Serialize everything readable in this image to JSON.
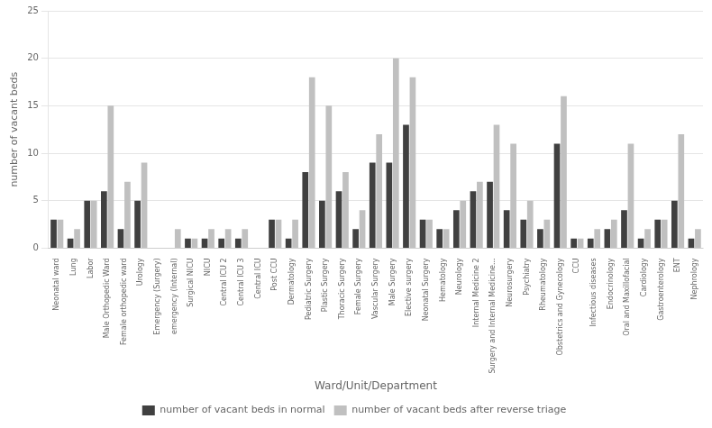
{
  "chart_data": {
    "type": "bar",
    "categories": [
      "Neonatal ward",
      "Lung",
      "Labor",
      "Male Orthopedic Ward",
      "Female orthopedic ward",
      "Urology",
      "Emergency (Surgery)",
      "emergency (Internal)",
      "Surgical NICU",
      "NICU",
      "Central ICU 2",
      "Central ICU 3",
      "Central ICU",
      "Post CCU",
      "Dermatology",
      "Pediatric Surgery",
      "Plastic Surgery",
      "Thoracic Surgery",
      "Female Surgery",
      "Vascular Surgery",
      "Male Surgery",
      "Elective surgery",
      "Neonatal Surgery",
      "Hematology",
      "Neurology",
      "Internal Medicine 2",
      "Surgery and Internal Medicine...",
      "Neurosurgery",
      "Psychiatry",
      "Rheumatology",
      "Obstetrics and Gynecology",
      "CCU",
      "Infectious diseases",
      "Endocrinology",
      "Oral and Maxillofacial",
      "Cardiology",
      "Gastroenterology",
      "ENT",
      "Nephrology"
    ],
    "series": [
      {
        "name": "number of vacant beds in normal",
        "color": "#404040",
        "values": [
          3,
          1,
          5,
          6,
          2,
          5,
          0,
          0,
          1,
          1,
          1,
          1,
          0,
          3,
          1,
          8,
          5,
          6,
          2,
          9,
          9,
          13,
          3,
          2,
          4,
          6,
          7,
          4,
          3,
          2,
          11,
          1,
          1,
          2,
          4,
          1,
          3,
          5,
          1
        ]
      },
      {
        "name": "number of vacant beds after reverse triage",
        "color": "#c0c0c0",
        "values": [
          3,
          2,
          5,
          15,
          7,
          9,
          0,
          2,
          1,
          2,
          2,
          2,
          0,
          3,
          3,
          18,
          15,
          8,
          4,
          12,
          20,
          18,
          3,
          2,
          5,
          7,
          13,
          11,
          5,
          3,
          16,
          1,
          2,
          3,
          11,
          2,
          3,
          12,
          2
        ]
      }
    ],
    "x_label": "Ward/Unit/Department",
    "y_label": "number of vacant beds",
    "ylim": [
      0,
      25
    ],
    "yticks": [
      0,
      5,
      10,
      15,
      20,
      25
    ],
    "grid": true,
    "legend": "bottom"
  }
}
